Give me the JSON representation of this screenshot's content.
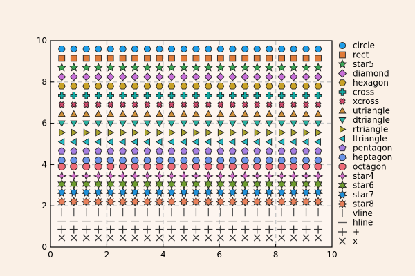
{
  "chart_data": {
    "type": "scatter",
    "title": "",
    "xlabel": "",
    "ylabel": "",
    "xlim": [
      0,
      10
    ],
    "ylim": [
      0,
      10
    ],
    "xticks": [
      "0",
      "2",
      "4",
      "6",
      "8",
      "10"
    ],
    "yticks": [
      "0",
      "2",
      "4",
      "6",
      "8",
      "10"
    ],
    "grid": true,
    "grid_style": "dashed",
    "legend_position": "right",
    "x": [
      0.4,
      0.83,
      1.27,
      1.7,
      2.13,
      2.57,
      3.0,
      3.44,
      3.87,
      4.3,
      4.74,
      5.17,
      5.61,
      6.04,
      6.47,
      6.91,
      7.34,
      7.77,
      8.21,
      8.64,
      9.08,
      9.51
    ],
    "background": "#faf0e6",
    "plot_background": "#fdf5ef",
    "series": [
      {
        "name": "circle",
        "marker": "circle",
        "color": "#1f9ee8",
        "y": 9.6
      },
      {
        "name": "rect",
        "marker": "rect",
        "color": "#e07b39",
        "y": 9.15
      },
      {
        "name": "star5",
        "marker": "star5",
        "color": "#3aa655",
        "y": 8.7
      },
      {
        "name": "diamond",
        "marker": "diamond",
        "color": "#c86fd8",
        "y": 8.25
      },
      {
        "name": "hexagon",
        "marker": "hexagon",
        "color": "#c9a227",
        "y": 7.8
      },
      {
        "name": "cross",
        "marker": "cross",
        "color": "#13a8a0",
        "y": 7.35
      },
      {
        "name": "xcross",
        "marker": "xcross",
        "color": "#d24a6c",
        "y": 6.9
      },
      {
        "name": "utriangle",
        "marker": "utriangle",
        "color": "#d0903a",
        "y": 6.45
      },
      {
        "name": "dtriangle",
        "marker": "dtriangle",
        "color": "#2ab0a0",
        "y": 6.0
      },
      {
        "name": "rtriangle",
        "marker": "rtriangle",
        "color": "#a9a32b",
        "y": 5.55
      },
      {
        "name": "ltriangle",
        "marker": "ltriangle",
        "color": "#23b7bf",
        "y": 5.1
      },
      {
        "name": "pentagon",
        "marker": "pentagon",
        "color": "#a57ee0",
        "y": 4.65
      },
      {
        "name": "heptagon",
        "marker": "heptagon",
        "color": "#6a93e8",
        "y": 4.2
      },
      {
        "name": "octagon",
        "marker": "octagon",
        "color": "#ee6a78",
        "y": 3.9
      },
      {
        "name": "star4",
        "marker": "star4",
        "color": "#d46fcc",
        "y": 3.45
      },
      {
        "name": "star6",
        "marker": "star6",
        "color": "#6e9d2e",
        "y": 3.05
      },
      {
        "name": "star7",
        "marker": "star7",
        "color": "#1e8fd8",
        "y": 2.65
      },
      {
        "name": "star8",
        "marker": "star8",
        "color": "#e8805a",
        "y": 2.2
      },
      {
        "name": "vline",
        "marker": "vline",
        "color": "#555555",
        "y": 1.7
      },
      {
        "name": "hline",
        "marker": "hline",
        "color": "#555555",
        "y": 1.25
      },
      {
        "name": "+",
        "marker": "plus",
        "color": "#333333",
        "y": 0.85
      },
      {
        "name": "x",
        "marker": "x",
        "color": "#333333",
        "y": 0.45
      }
    ]
  }
}
